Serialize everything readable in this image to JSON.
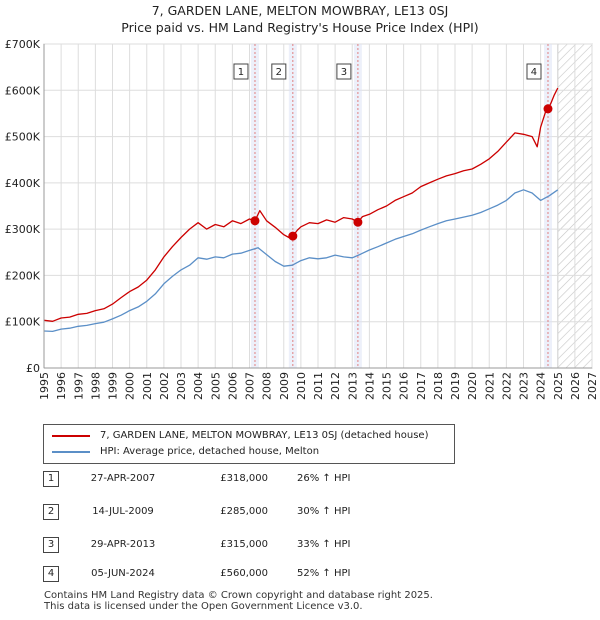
{
  "chart_data": {
    "type": "line",
    "title": "7, GARDEN LANE, MELTON MOWBRAY, LE13 0SJ",
    "subtitle": "Price paid vs. HM Land Registry's House Price Index (HPI)",
    "xlabel": "",
    "ylabel": "",
    "xlim": [
      1995,
      2027
    ],
    "ylim": [
      0,
      700000
    ],
    "y_ticks": [
      {
        "value": 0,
        "label": "£0"
      },
      {
        "value": 100000,
        "label": "£100K"
      },
      {
        "value": 200000,
        "label": "£200K"
      },
      {
        "value": 300000,
        "label": "£300K"
      },
      {
        "value": 400000,
        "label": "£400K"
      },
      {
        "value": 500000,
        "label": "£500K"
      },
      {
        "value": 600000,
        "label": "£600K"
      },
      {
        "value": 700000,
        "label": "£700K"
      }
    ],
    "x_ticks": [
      "1995",
      "1996",
      "1997",
      "1998",
      "1999",
      "2000",
      "2001",
      "2002",
      "2003",
      "2004",
      "2005",
      "2006",
      "2007",
      "2008",
      "2009",
      "2010",
      "2011",
      "2012",
      "2013",
      "2014",
      "2015",
      "2016",
      "2017",
      "2018",
      "2019",
      "2020",
      "2021",
      "2022",
      "2023",
      "2024",
      "2025",
      "2026",
      "2027"
    ],
    "grid": true,
    "forecast_from": 2025.0,
    "series": [
      {
        "name": "7, GARDEN LANE, MELTON MOWBRAY, LE13 0SJ (detached house)",
        "color": "#cc0000",
        "x": [
          1995.0,
          1995.5,
          1996.0,
          1996.5,
          1997.0,
          1997.5,
          1998.0,
          1998.5,
          1999.0,
          1999.5,
          2000.0,
          2000.5,
          2001.0,
          2001.5,
          2002.0,
          2002.5,
          2003.0,
          2003.5,
          2004.0,
          2004.5,
          2005.0,
          2005.5,
          2006.0,
          2006.5,
          2007.0,
          2007.32,
          2007.6,
          2008.0,
          2008.5,
          2009.0,
          2009.3,
          2009.53,
          2009.8,
          2010.0,
          2010.5,
          2011.0,
          2011.5,
          2012.0,
          2012.5,
          2013.0,
          2013.33,
          2013.6,
          2014.0,
          2014.5,
          2015.0,
          2015.5,
          2016.0,
          2016.5,
          2017.0,
          2017.5,
          2018.0,
          2018.5,
          2019.0,
          2019.5,
          2020.0,
          2020.5,
          2021.0,
          2021.5,
          2022.0,
          2022.5,
          2023.0,
          2023.5,
          2023.8,
          2024.0,
          2024.3,
          2024.43,
          2024.6,
          2024.8,
          2025.0
        ],
        "values": [
          103000,
          101000,
          108000,
          110000,
          116000,
          118000,
          124000,
          128000,
          138000,
          152000,
          165000,
          175000,
          190000,
          212000,
          240000,
          262000,
          282000,
          300000,
          314000,
          300000,
          310000,
          305000,
          318000,
          312000,
          322000,
          318000,
          340000,
          318000,
          304000,
          288000,
          282000,
          285000,
          298000,
          305000,
          314000,
          312000,
          320000,
          315000,
          325000,
          322000,
          315000,
          327000,
          332000,
          342000,
          350000,
          362000,
          370000,
          378000,
          392000,
          400000,
          408000,
          415000,
          420000,
          426000,
          430000,
          440000,
          452000,
          468000,
          488000,
          508000,
          505000,
          500000,
          478000,
          520000,
          555000,
          560000,
          572000,
          590000,
          605000
        ]
      },
      {
        "name": "HPI: Average price, detached house, Melton",
        "color": "#5b8fc7",
        "x": [
          1995.0,
          1995.5,
          1996.0,
          1996.5,
          1997.0,
          1997.5,
          1998.0,
          1998.5,
          1999.0,
          1999.5,
          2000.0,
          2000.5,
          2001.0,
          2001.5,
          2002.0,
          2002.5,
          2003.0,
          2003.5,
          2004.0,
          2004.5,
          2005.0,
          2005.5,
          2006.0,
          2006.5,
          2007.0,
          2007.5,
          2008.0,
          2008.5,
          2009.0,
          2009.5,
          2010.0,
          2010.5,
          2011.0,
          2011.5,
          2012.0,
          2012.5,
          2013.0,
          2013.5,
          2014.0,
          2014.5,
          2015.0,
          2015.5,
          2016.0,
          2016.5,
          2017.0,
          2017.5,
          2018.0,
          2018.5,
          2019.0,
          2019.5,
          2020.0,
          2020.5,
          2021.0,
          2021.5,
          2022.0,
          2022.5,
          2023.0,
          2023.5,
          2024.0,
          2024.5,
          2025.0
        ],
        "values": [
          80000,
          79000,
          84000,
          86000,
          90000,
          92000,
          96000,
          99000,
          106000,
          114000,
          124000,
          132000,
          144000,
          160000,
          182000,
          198000,
          212000,
          222000,
          238000,
          235000,
          240000,
          238000,
          246000,
          248000,
          254000,
          260000,
          245000,
          230000,
          220000,
          222000,
          232000,
          238000,
          236000,
          238000,
          244000,
          240000,
          238000,
          246000,
          255000,
          262000,
          270000,
          278000,
          284000,
          290000,
          298000,
          305000,
          312000,
          318000,
          322000,
          326000,
          330000,
          336000,
          344000,
          352000,
          362000,
          378000,
          385000,
          378000,
          362000,
          372000,
          385000
        ]
      }
    ],
    "sales": [
      {
        "id": "1",
        "date": "27-APR-2007",
        "x": 2007.32,
        "price": 318000,
        "price_label": "£318,000",
        "hpi_label": "26% ↑ HPI"
      },
      {
        "id": "2",
        "date": "14-JUL-2009",
        "x": 2009.53,
        "price": 285000,
        "price_label": "£285,000",
        "hpi_label": "30% ↑ HPI"
      },
      {
        "id": "3",
        "date": "29-APR-2013",
        "x": 2013.33,
        "price": 315000,
        "price_label": "£315,000",
        "hpi_label": "33% ↑ HPI"
      },
      {
        "id": "4",
        "date": "05-JUN-2024",
        "x": 2024.43,
        "price": 560000,
        "price_label": "£560,000",
        "hpi_label": "52% ↑ HPI"
      }
    ]
  },
  "legend": {
    "property_label": "7, GARDEN LANE, MELTON MOWBRAY, LE13 0SJ (detached house)",
    "hpi_label": "HPI: Average price, detached house, Melton",
    "property_color": "#cc0000",
    "hpi_color": "#5b8fc7"
  },
  "footer": {
    "line1": "Contains HM Land Registry data © Crown copyright and database right 2025.",
    "line2": "This data is licensed under the Open Government Licence v3.0."
  }
}
